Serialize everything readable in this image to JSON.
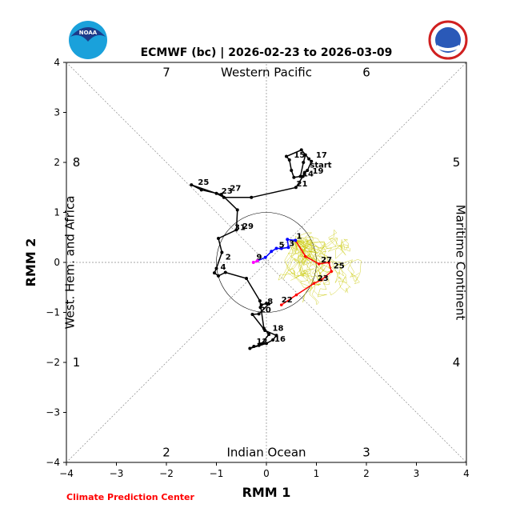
{
  "chart_data": {
    "type": "line",
    "title": "ECMWF (bc) | 2026-02-23 to 2026-03-09",
    "xlabel": "RMM 1",
    "ylabel": "RMM 2",
    "xlim": [
      -4,
      4
    ],
    "ylim": [
      -4,
      4
    ],
    "x_ticks": [
      "−4",
      "−3",
      "−2",
      "−1",
      "0",
      "1",
      "2",
      "3",
      "4"
    ],
    "y_ticks": [
      "−4",
      "−3",
      "−2",
      "−1",
      "0",
      "1",
      "2",
      "3",
      "4"
    ],
    "regions": {
      "top": "Western Pacific",
      "bottom": "Indian Ocean",
      "left": "West. Hem. and Africa",
      "right": "Maritime Continent"
    },
    "phases": [
      {
        "label": "7",
        "x": -2.0,
        "y": 3.8
      },
      {
        "label": "6",
        "x": 2.0,
        "y": 3.8
      },
      {
        "label": "8",
        "x": -3.8,
        "y": 2.0
      },
      {
        "label": "5",
        "x": 3.8,
        "y": 2.0
      },
      {
        "label": "1",
        "x": -3.8,
        "y": -2.0
      },
      {
        "label": "4",
        "x": 3.8,
        "y": -2.0
      },
      {
        "label": "2",
        "x": -2.0,
        "y": -3.8
      },
      {
        "label": "3",
        "x": 2.0,
        "y": -3.8
      }
    ],
    "credit": "Climate Prediction Center",
    "observed_colors": {
      "black": "#000000",
      "blue": "#0000ff",
      "magenta": "#ff00ff",
      "red": "#ff0000",
      "ensemble": "#c8c800"
    },
    "observed_black": {
      "x": [
        0.78,
        0.74,
        0.68,
        0.55,
        0.5,
        0.46,
        0.4,
        0.7,
        0.85,
        0.9,
        0.82,
        0.76,
        0.73,
        0.59,
        -0.3,
        -0.85,
        -1.0,
        -1.5,
        -1.3,
        -0.9,
        -0.58,
        -0.6,
        -0.96,
        -0.89,
        -1.0,
        -1.04,
        -0.96,
        -0.82,
        -0.4,
        -0.13,
        -0.05,
        0.05,
        -0.1,
        -0.15,
        -0.25,
        -0.33,
        0.0,
        0.13,
        0.2,
        -0.03,
        -0.28,
        -0.15,
        0.05,
        0.0,
        -0.1,
        -0.12
      ],
      "y": [
        2.15,
        2.0,
        1.72,
        1.7,
        1.84,
        2.05,
        2.12,
        2.25,
        2.07,
        2.02,
        1.84,
        1.78,
        1.72,
        1.5,
        1.3,
        1.3,
        1.38,
        1.55,
        1.45,
        1.36,
        1.05,
        0.65,
        0.48,
        0.2,
        -0.12,
        -0.21,
        -0.27,
        -0.2,
        -0.32,
        -0.77,
        -1.32,
        -1.44,
        -1.63,
        -1.66,
        -1.68,
        -1.72,
        -1.62,
        -1.55,
        -1.46,
        -1.36,
        -1.04,
        -1.03,
        -0.83,
        -0.82,
        -0.85,
        -0.9
      ],
      "labels": [
        {
          "text": "15",
          "x": 0.55,
          "y": 2.1
        },
        {
          "text": "17",
          "x": 0.99,
          "y": 2.1
        },
        {
          "text": "start",
          "x": 0.87,
          "y": 1.9
        },
        {
          "text": "14",
          "x": 0.72,
          "y": 1.72
        },
        {
          "text": "19",
          "x": 0.92,
          "y": 1.78
        },
        {
          "text": "21",
          "x": 0.6,
          "y": 1.52
        },
        {
          "text": "25",
          "x": -1.37,
          "y": 1.55
        },
        {
          "text": "23",
          "x": -0.9,
          "y": 1.38
        },
        {
          "text": "27",
          "x": -0.73,
          "y": 1.43
        },
        {
          "text": "31",
          "x": -0.64,
          "y": 0.65
        },
        {
          "text": "29",
          "x": -0.48,
          "y": 0.67
        },
        {
          "text": "2",
          "x": -0.82,
          "y": 0.06
        },
        {
          "text": "4",
          "x": -0.92,
          "y": -0.14
        },
        {
          "text": "20",
          "x": -0.13,
          "y": -1.0
        },
        {
          "text": "8",
          "x": 0.02,
          "y": -0.83
        },
        {
          "text": "18",
          "x": 0.12,
          "y": -1.37
        },
        {
          "text": "16",
          "x": 0.16,
          "y": -1.58
        },
        {
          "text": "12",
          "x": -0.2,
          "y": -1.63
        }
      ]
    },
    "observed_blue": {
      "x": [
        0.58,
        0.42,
        0.44,
        0.3,
        0.2,
        0.1,
        -0.02,
        -0.18
      ],
      "y": [
        0.44,
        0.46,
        0.3,
        0.28,
        0.28,
        0.22,
        0.1,
        0.03
      ],
      "labels": [
        {
          "text": "1",
          "x": 0.6,
          "y": 0.47
        },
        {
          "text": "5",
          "x": 0.25,
          "y": 0.3
        },
        {
          "text": "3",
          "x": 0.45,
          "y": 0.33
        },
        {
          "text": "9",
          "x": -0.2,
          "y": 0.06
        }
      ]
    },
    "observed_magenta": {
      "x": [
        -0.18,
        -0.26
      ],
      "y": [
        0.03,
        0.0
      ]
    },
    "forecast_red": {
      "x": [
        0.58,
        0.78,
        1.05,
        1.25,
        1.3,
        1.1,
        0.95,
        0.6,
        0.3
      ],
      "y": [
        0.44,
        0.12,
        -0.03,
        0.0,
        -0.18,
        -0.35,
        -0.42,
        -0.65,
        -0.85
      ],
      "labels": [
        {
          "text": "27",
          "x": 1.09,
          "y": 0.0
        },
        {
          "text": "25",
          "x": 1.34,
          "y": -0.12
        },
        {
          "text": "23",
          "x": 1.02,
          "y": -0.37
        },
        {
          "text": "22",
          "x": 0.3,
          "y": -0.8
        }
      ]
    },
    "ensemble_members": 30,
    "unit_circle_radius": 1
  }
}
